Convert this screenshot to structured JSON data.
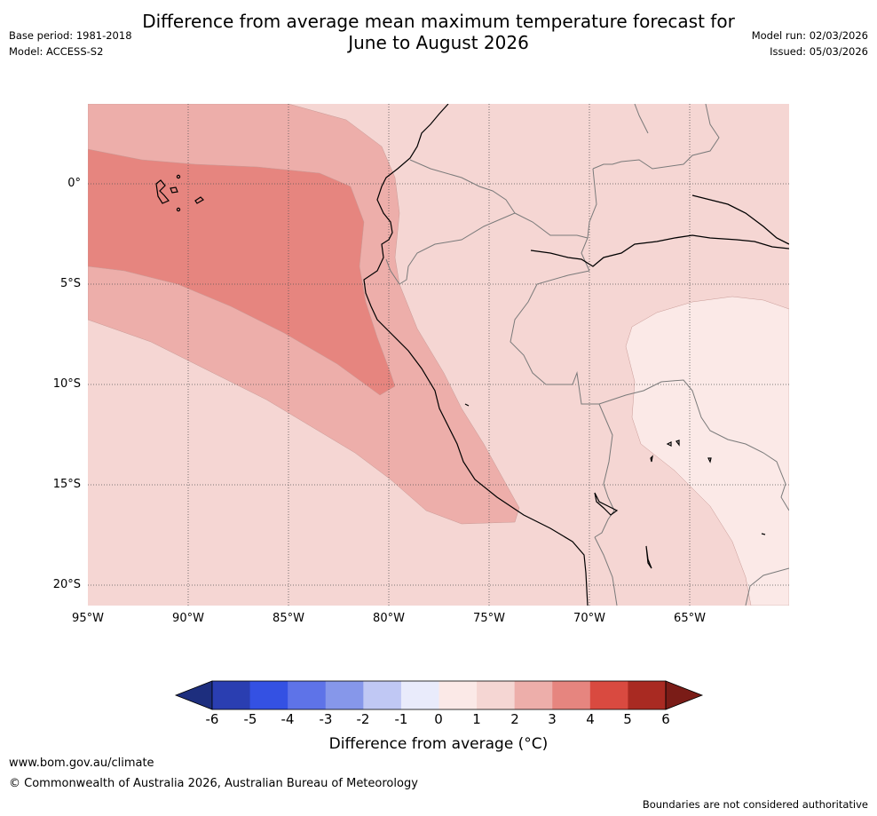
{
  "title": {
    "line1": "Difference from average mean maximum temperature forecast for",
    "line2": "June to August 2026"
  },
  "meta_left": {
    "base_period": "Base period: 1981-2018",
    "model": "Model: ACCESS-S2"
  },
  "meta_right": {
    "model_run": "Model run: 02/03/2026",
    "issued": "Issued: 05/03/2026"
  },
  "map": {
    "lon_range": [
      -95,
      -60
    ],
    "lat_range": [
      -21,
      4
    ],
    "background_color": "#f5d6d3",
    "lat_labels": [
      {
        "lat": 0,
        "text": "0°"
      },
      {
        "lat": -5,
        "text": "5°S"
      },
      {
        "lat": -10,
        "text": "10°S"
      },
      {
        "lat": -15,
        "text": "15°S"
      },
      {
        "lat": -20,
        "text": "20°S"
      }
    ],
    "lon_labels": [
      {
        "lon": -95,
        "text": "95°W"
      },
      {
        "lon": -90,
        "text": "90°W"
      },
      {
        "lon": -85,
        "text": "85°W"
      },
      {
        "lon": -80,
        "text": "80°W"
      },
      {
        "lon": -75,
        "text": "75°W"
      },
      {
        "lon": -70,
        "text": "70°W"
      },
      {
        "lon": -65,
        "text": "65°W"
      }
    ],
    "regions": [
      {
        "name": "anomaly-2-3-region",
        "range": "2 to 3",
        "color": "#edaeaa"
      },
      {
        "name": "anomaly-3-4-region",
        "range": "3 to 4",
        "color": "#e6857f"
      },
      {
        "name": "anomaly-0-1-region",
        "range": "0 to 1",
        "color": "#fbe9e7"
      }
    ]
  },
  "colorbar": {
    "ticks": [
      "-6",
      "-5",
      "-4",
      "-3",
      "-2",
      "-1",
      "0",
      "1",
      "2",
      "3",
      "4",
      "5",
      "6"
    ],
    "low_extend_color": "#1d2e7e",
    "high_extend_color": "#7a1c17",
    "colors": [
      "#2a3eb1",
      "#3451e3",
      "#5e73e8",
      "#8697ea",
      "#c0c8f4",
      "#e9ebfb",
      "#fbe9e7",
      "#f5d6d3",
      "#edaeaa",
      "#e6857f",
      "#d94a40",
      "#a92a22"
    ],
    "label": "Difference from average ($^\\circ$C)",
    "label_display": "Difference from average (°C)"
  },
  "footer": {
    "website": "www.bom.gov.au/climate",
    "copyright": "© Commonwealth of Australia 2026, Australian Bureau of Meteorology",
    "disclaimer": "Boundaries are not considered authoritative"
  }
}
